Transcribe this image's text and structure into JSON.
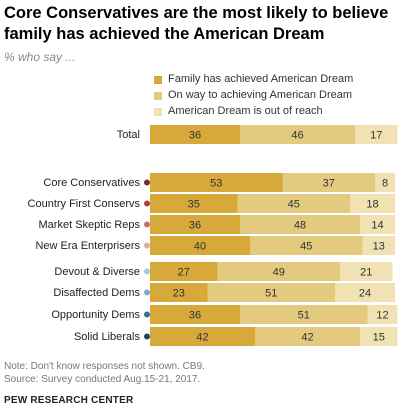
{
  "header": {
    "title": "Core Conservatives are the most likely to believe family has achieved the American Dream",
    "subtitle": "% who say ..."
  },
  "colors": {
    "achieved": "#d6a93a",
    "on_way": "#e3ca7e",
    "out_of_reach": "#f0e2b3",
    "segment_text": "#333333"
  },
  "legend": [
    {
      "label": "Family has achieved American Dream",
      "color": "#d6a93a"
    },
    {
      "label": "On way to achieving American Dream",
      "color": "#e3ca7e"
    },
    {
      "label": "American Dream is out of reach",
      "color": "#f0e2b3"
    }
  ],
  "chart_data": {
    "type": "bar",
    "orientation": "horizontal",
    "stacked": true,
    "title": "Core Conservatives are the most likely to believe family has achieved the American Dream",
    "subtitle": "% who say ...",
    "xlim": [
      0,
      100
    ],
    "grid": false,
    "legend_position": "top",
    "categories": [
      "Total",
      "Core Conservatives",
      "Country First Conservs",
      "Market Skeptic Reps",
      "New Era Enterprisers",
      "Devout & Diverse",
      "Disaffected Dems",
      "Opportunity Dems",
      "Solid Liberals"
    ],
    "category_dot_colors": [
      null,
      "#7a2b25",
      "#b5403a",
      "#cf6b66",
      "#e8a8a5",
      "#a9c6df",
      "#7ea7c8",
      "#3f6e93",
      "#23425f"
    ],
    "series": [
      {
        "name": "Family has achieved American Dream",
        "values": [
          36,
          53,
          35,
          36,
          40,
          27,
          23,
          36,
          42
        ]
      },
      {
        "name": "On way to achieving American Dream",
        "values": [
          46,
          37,
          45,
          48,
          45,
          49,
          51,
          51,
          42
        ]
      },
      {
        "name": "American Dream is out of reach",
        "values": [
          17,
          8,
          18,
          14,
          13,
          21,
          24,
          12,
          15
        ]
      }
    ]
  },
  "footer": {
    "note": "Note: Don't know responses not shown. CB9.",
    "source": "Source: Survey conducted Aug.15-21, 2017.",
    "org": "PEW RESEARCH CENTER"
  }
}
